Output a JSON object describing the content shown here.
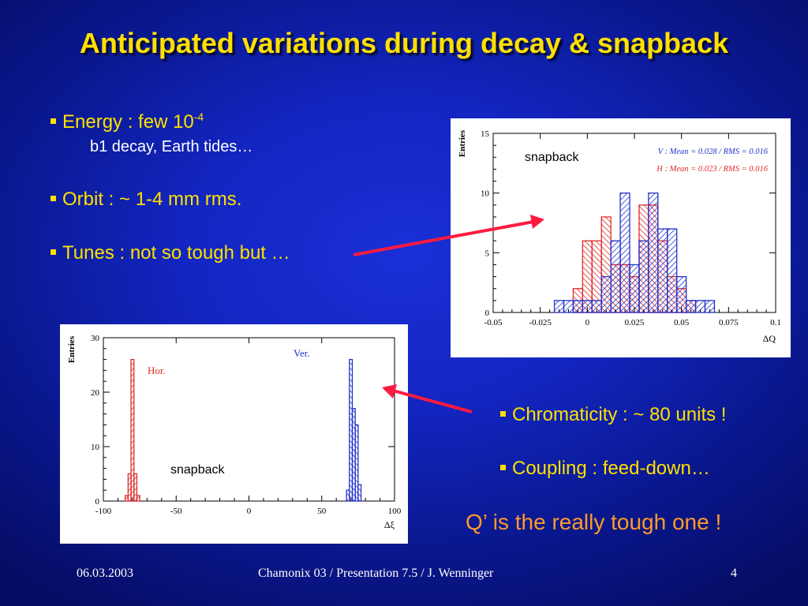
{
  "slide": {
    "title": "Anticipated variations during decay & snapback",
    "bullets_left": [
      {
        "label": "Energy : few 10",
        "sup": "-4",
        "sub": "b1 decay, Earth tides…"
      },
      {
        "label": "Orbit : ~ 1-4 mm rms."
      },
      {
        "label": "Tunes : not so tough but …"
      }
    ],
    "bullets_right": [
      {
        "label": "Chromaticity : ~ 80 units !"
      },
      {
        "label": "Coupling : feed-down…"
      }
    ],
    "highlight": "Q’ is the really tough one !",
    "footer": {
      "date": "06.03.2003",
      "center": "Chamonix 03 / Presentation 7.5 / J. Wenninger",
      "page": "4"
    },
    "colors": {
      "title": "#ffe000",
      "highlight": "#ff9a2a",
      "arrow": "#ff1a40",
      "hor": "#dd2a2a",
      "ver": "#2233cc"
    }
  },
  "chart_data": [
    {
      "type": "bar",
      "subtype": "histogram",
      "annotation": "snapback",
      "xlabel": "ΔQ",
      "ylabel": "Entries",
      "xlim": [
        -0.05,
        0.1
      ],
      "ylim": [
        0,
        15
      ],
      "xticks": [
        "-0.05",
        "-0.025",
        "0",
        "0.025",
        "0.05",
        "0.075",
        "0.1"
      ],
      "yticks": [
        "0",
        "5",
        "10",
        "15"
      ],
      "bin_width": 0.005,
      "series": [
        {
          "name": "V",
          "legend": "V : Mean = 0.028 / RMS = 0.016",
          "color": "#2233cc",
          "bins": [
            {
              "x": -0.015,
              "y": 1
            },
            {
              "x": -0.01,
              "y": 1
            },
            {
              "x": -0.005,
              "y": 1
            },
            {
              "x": 0.0,
              "y": 1
            },
            {
              "x": 0.005,
              "y": 1
            },
            {
              "x": 0.01,
              "y": 3
            },
            {
              "x": 0.015,
              "y": 6
            },
            {
              "x": 0.02,
              "y": 10
            },
            {
              "x": 0.025,
              "y": 4
            },
            {
              "x": 0.03,
              "y": 6
            },
            {
              "x": 0.035,
              "y": 10
            },
            {
              "x": 0.04,
              "y": 7
            },
            {
              "x": 0.045,
              "y": 7
            },
            {
              "x": 0.05,
              "y": 3
            },
            {
              "x": 0.055,
              "y": 1
            },
            {
              "x": 0.06,
              "y": 1
            },
            {
              "x": 0.065,
              "y": 1
            }
          ]
        },
        {
          "name": "H",
          "legend": "H : Mean = 0.023 / RMS = 0.016",
          "color": "#dd2a2a",
          "bins": [
            {
              "x": -0.005,
              "y": 2
            },
            {
              "x": 0.0,
              "y": 6
            },
            {
              "x": 0.005,
              "y": 6
            },
            {
              "x": 0.01,
              "y": 8
            },
            {
              "x": 0.015,
              "y": 4
            },
            {
              "x": 0.02,
              "y": 4
            },
            {
              "x": 0.025,
              "y": 3
            },
            {
              "x": 0.03,
              "y": 9
            },
            {
              "x": 0.035,
              "y": 9
            },
            {
              "x": 0.04,
              "y": 6
            },
            {
              "x": 0.045,
              "y": 3
            },
            {
              "x": 0.05,
              "y": 2
            },
            {
              "x": 0.055,
              "y": 1
            }
          ]
        }
      ]
    },
    {
      "type": "bar",
      "subtype": "histogram",
      "annotation": "snapback",
      "xlabel": "Δξ",
      "ylabel": "Entries",
      "xlim": [
        -100,
        100
      ],
      "ylim": [
        0,
        30
      ],
      "xticks": [
        "-100",
        "-50",
        "0",
        "50",
        "100"
      ],
      "yticks": [
        "0",
        "10",
        "20",
        "30"
      ],
      "bin_width": 2,
      "series": [
        {
          "name": "Hor.",
          "color": "#dd2a2a",
          "bins": [
            {
              "x": -84,
              "y": 1
            },
            {
              "x": -82,
              "y": 5
            },
            {
              "x": -80,
              "y": 26
            },
            {
              "x": -78,
              "y": 5
            },
            {
              "x": -76,
              "y": 1
            }
          ]
        },
        {
          "name": "Ver.",
          "color": "#2233cc",
          "bins": [
            {
              "x": 68,
              "y": 2
            },
            {
              "x": 70,
              "y": 26
            },
            {
              "x": 72,
              "y": 17
            },
            {
              "x": 74,
              "y": 14
            },
            {
              "x": 76,
              "y": 3
            }
          ]
        }
      ]
    }
  ]
}
